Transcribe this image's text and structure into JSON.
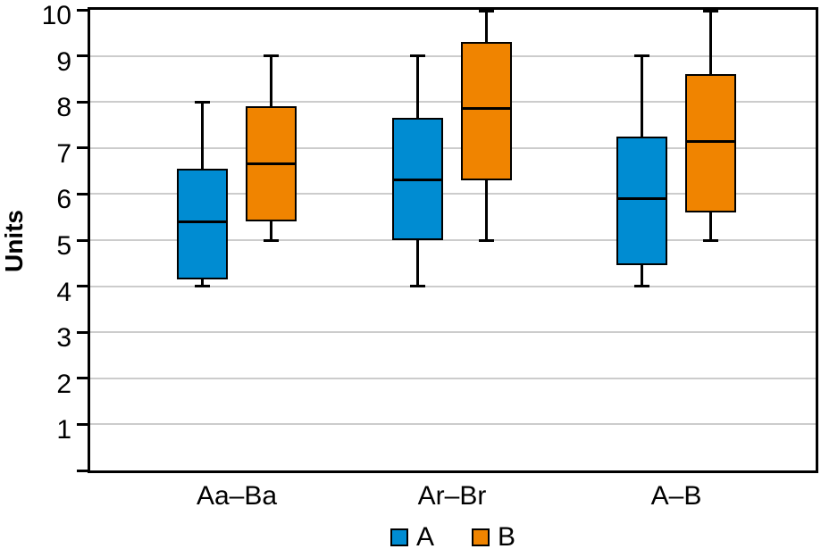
{
  "chart_data": {
    "type": "boxplot",
    "title": "",
    "xlabel": "",
    "ylabel": "Units",
    "ylim": [
      0,
      10
    ],
    "yticks": [
      1,
      2,
      3,
      4,
      5,
      6,
      7,
      8,
      9,
      10
    ],
    "grid": true,
    "categories": [
      "Aa–Ba",
      "Ar–Br",
      "A–B"
    ],
    "legend": {
      "position": "bottom",
      "entries": [
        "A",
        "B"
      ]
    },
    "series": [
      {
        "name": "A",
        "color": "#008CD2",
        "boxes": [
          {
            "category": "Aa–Ba",
            "min": 4.0,
            "q1": 4.15,
            "median": 5.4,
            "q3": 6.55,
            "max": 8.0
          },
          {
            "category": "Ar–Br",
            "min": 4.0,
            "q1": 5.0,
            "median": 6.3,
            "q3": 7.65,
            "max": 9.0
          },
          {
            "category": "A–B",
            "min": 4.0,
            "q1": 4.45,
            "median": 5.9,
            "q3": 7.25,
            "max": 9.0
          }
        ]
      },
      {
        "name": "B",
        "color": "#F08400",
        "boxes": [
          {
            "category": "Aa–Ba",
            "min": 5.0,
            "q1": 5.4,
            "median": 6.65,
            "q3": 7.9,
            "max": 9.0
          },
          {
            "category": "Ar–Br",
            "min": 5.0,
            "q1": 6.3,
            "median": 7.85,
            "q3": 9.3,
            "max": 10.0
          },
          {
            "category": "A–B",
            "min": 5.0,
            "q1": 5.6,
            "median": 7.15,
            "q3": 8.6,
            "max": 10.0
          }
        ]
      }
    ],
    "colors": {
      "series_a": "#008CD2",
      "series_b": "#F08400",
      "gridline": "#cccccc",
      "frame": "#000000"
    }
  }
}
